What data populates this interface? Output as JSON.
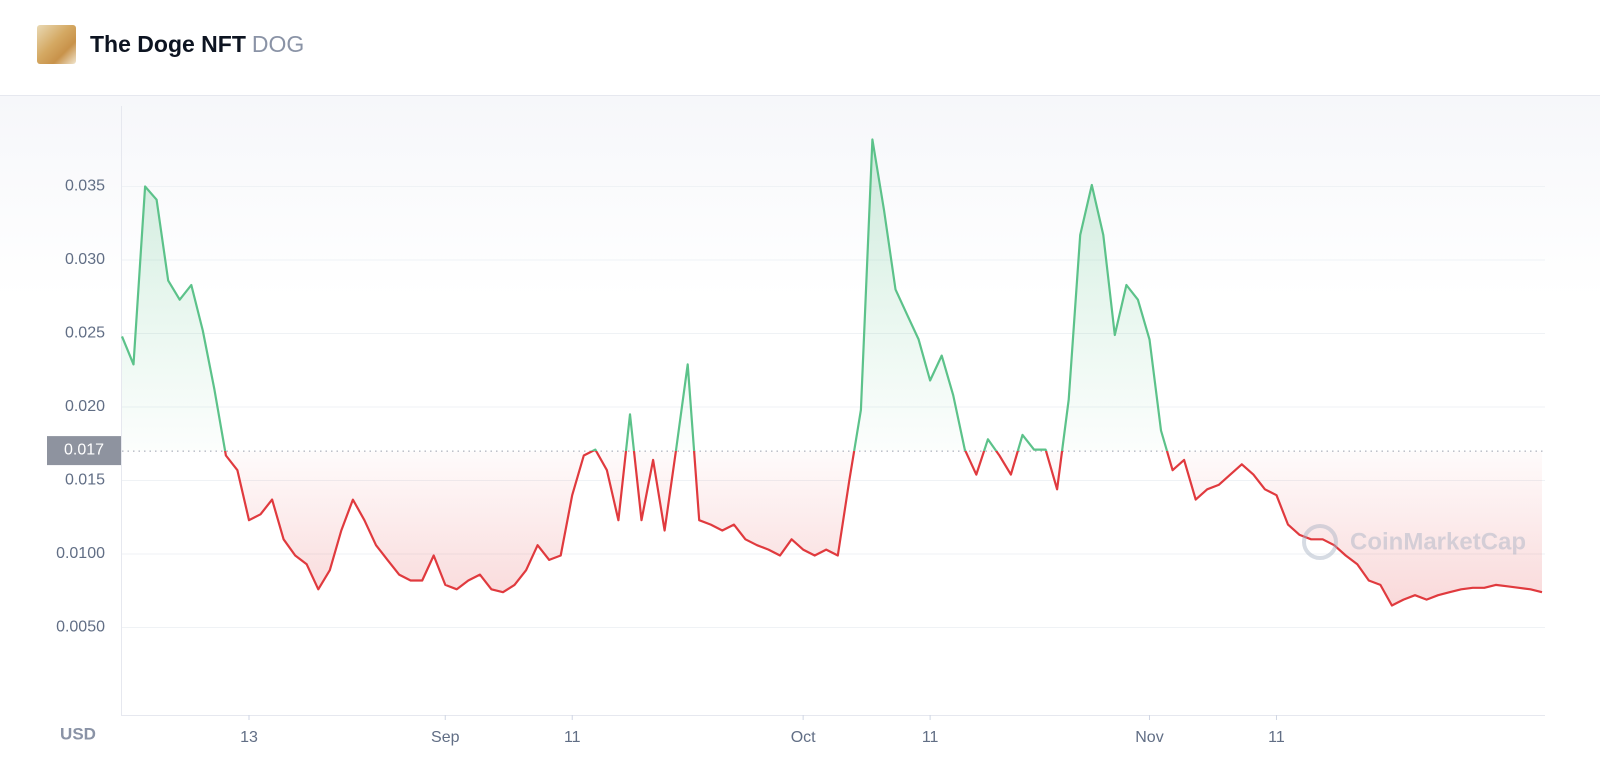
{
  "header": {
    "title": "The Doge NFT",
    "symbol": "DOG"
  },
  "chart_data": {
    "type": "line",
    "y_label": "USD",
    "watermark": "CoinMarketCap",
    "up_color": "#5cc28a",
    "down_color": "#e03a3e",
    "grid": true,
    "baseline": 0.017,
    "ylim": [
      0,
      0.04
    ],
    "yticks": [
      {
        "value": 0.005,
        "label": "0.0050"
      },
      {
        "value": 0.01,
        "label": "0.0100"
      },
      0.015,
      {
        "value": 0.02,
        "label": "0.020"
      },
      0.025,
      {
        "value": 0.03,
        "label": "0.030"
      },
      0.035
    ],
    "xlim": [
      0,
      123
    ],
    "xticks": [
      {
        "value": 11,
        "label": "13"
      },
      {
        "value": 28,
        "label": "Sep"
      },
      {
        "value": 39,
        "label": "11"
      },
      {
        "value": 59,
        "label": "Oct"
      },
      {
        "value": 70,
        "label": "11"
      },
      {
        "value": 89,
        "label": "Nov"
      },
      {
        "value": 100,
        "label": "11"
      }
    ],
    "values": [
      0.0248,
      0.0229,
      0.035,
      0.0341,
      0.0286,
      0.0273,
      0.0283,
      0.0252,
      0.0212,
      0.0167,
      0.0157,
      0.0123,
      0.0127,
      0.0137,
      0.011,
      0.0099,
      0.0093,
      0.0076,
      0.0089,
      0.0116,
      0.0137,
      0.0123,
      0.0106,
      0.0096,
      0.0086,
      0.0082,
      0.0082,
      0.0099,
      0.0079,
      0.0076,
      0.0082,
      0.0086,
      0.0076,
      0.0074,
      0.0079,
      0.0089,
      0.0106,
      0.0096,
      0.0099,
      0.014,
      0.0167,
      0.0171,
      0.0157,
      0.0123,
      0.0195,
      0.0123,
      0.0164,
      0.0116,
      0.0171,
      0.0229,
      0.0123,
      0.012,
      0.0116,
      0.012,
      0.011,
      0.0106,
      0.0103,
      0.0099,
      0.011,
      0.0103,
      0.0099,
      0.0103,
      0.0099,
      0.015,
      0.0198,
      0.0382,
      0.0334,
      0.028,
      0.0263,
      0.0246,
      0.0218,
      0.0235,
      0.0208,
      0.0171,
      0.0154,
      0.0178,
      0.0167,
      0.0154,
      0.0181,
      0.0171,
      0.0171,
      0.0144,
      0.0205,
      0.0317,
      0.0351,
      0.0317,
      0.0249,
      0.0283,
      0.0273,
      0.0246,
      0.0184,
      0.0157,
      0.0164,
      0.0137,
      0.0144,
      0.0147,
      0.0154,
      0.0161,
      0.0154,
      0.0144,
      0.014,
      0.012,
      0.0113,
      0.011,
      0.011,
      0.0106,
      0.0099,
      0.0093,
      0.0082,
      0.0079,
      0.0065,
      0.0069,
      0.0072,
      0.0069,
      0.0072,
      0.0074,
      0.0076,
      0.0077,
      0.0077,
      0.0079,
      0.0078,
      0.0077,
      0.0076,
      0.0074
    ]
  }
}
